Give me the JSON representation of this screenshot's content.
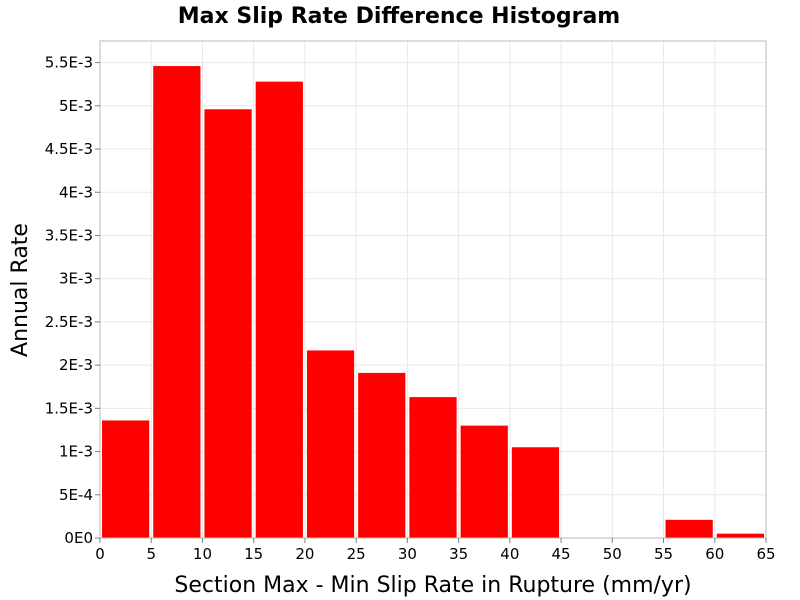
{
  "chart_data": {
    "type": "bar",
    "title": "Max Slip Rate Difference Histogram",
    "xlabel": "Section Max - Min Slip Rate in Rupture (mm/yr)",
    "ylabel": "Annual Rate",
    "x_ticks": [
      "0",
      "5",
      "10",
      "15",
      "20",
      "25",
      "30",
      "35",
      "40",
      "45",
      "50",
      "55",
      "60",
      "65"
    ],
    "x_tick_values": [
      0,
      5,
      10,
      15,
      20,
      25,
      30,
      35,
      40,
      45,
      50,
      55,
      60,
      65
    ],
    "y_ticks": [
      "0E0",
      "5E-4",
      "1E-3",
      "1.5E-3",
      "2E-3",
      "2.5E-3",
      "3E-3",
      "3.5E-3",
      "4E-3",
      "4.5E-3",
      "5E-3",
      "5.5E-3"
    ],
    "y_tick_values": [
      0,
      0.0005,
      0.001,
      0.0015,
      0.002,
      0.0025,
      0.003,
      0.0035,
      0.004,
      0.0045,
      0.005,
      0.0055
    ],
    "xlim": [
      0,
      65
    ],
    "ylim": [
      0,
      0.00575
    ],
    "bin_width": 5,
    "bins": [
      {
        "x0": 0,
        "value": 0.00136
      },
      {
        "x0": 5,
        "value": 0.00546
      },
      {
        "x0": 10,
        "value": 0.00496
      },
      {
        "x0": 15,
        "value": 0.00528
      },
      {
        "x0": 20,
        "value": 0.00217
      },
      {
        "x0": 25,
        "value": 0.00191
      },
      {
        "x0": 30,
        "value": 0.00163
      },
      {
        "x0": 35,
        "value": 0.0013
      },
      {
        "x0": 40,
        "value": 0.00105
      },
      {
        "x0": 45,
        "value": 0
      },
      {
        "x0": 50,
        "value": 0
      },
      {
        "x0": 55,
        "value": 0.00021
      },
      {
        "x0": 60,
        "value": 5e-05
      }
    ],
    "bar_color": "#ff0000",
    "grid": true
  }
}
